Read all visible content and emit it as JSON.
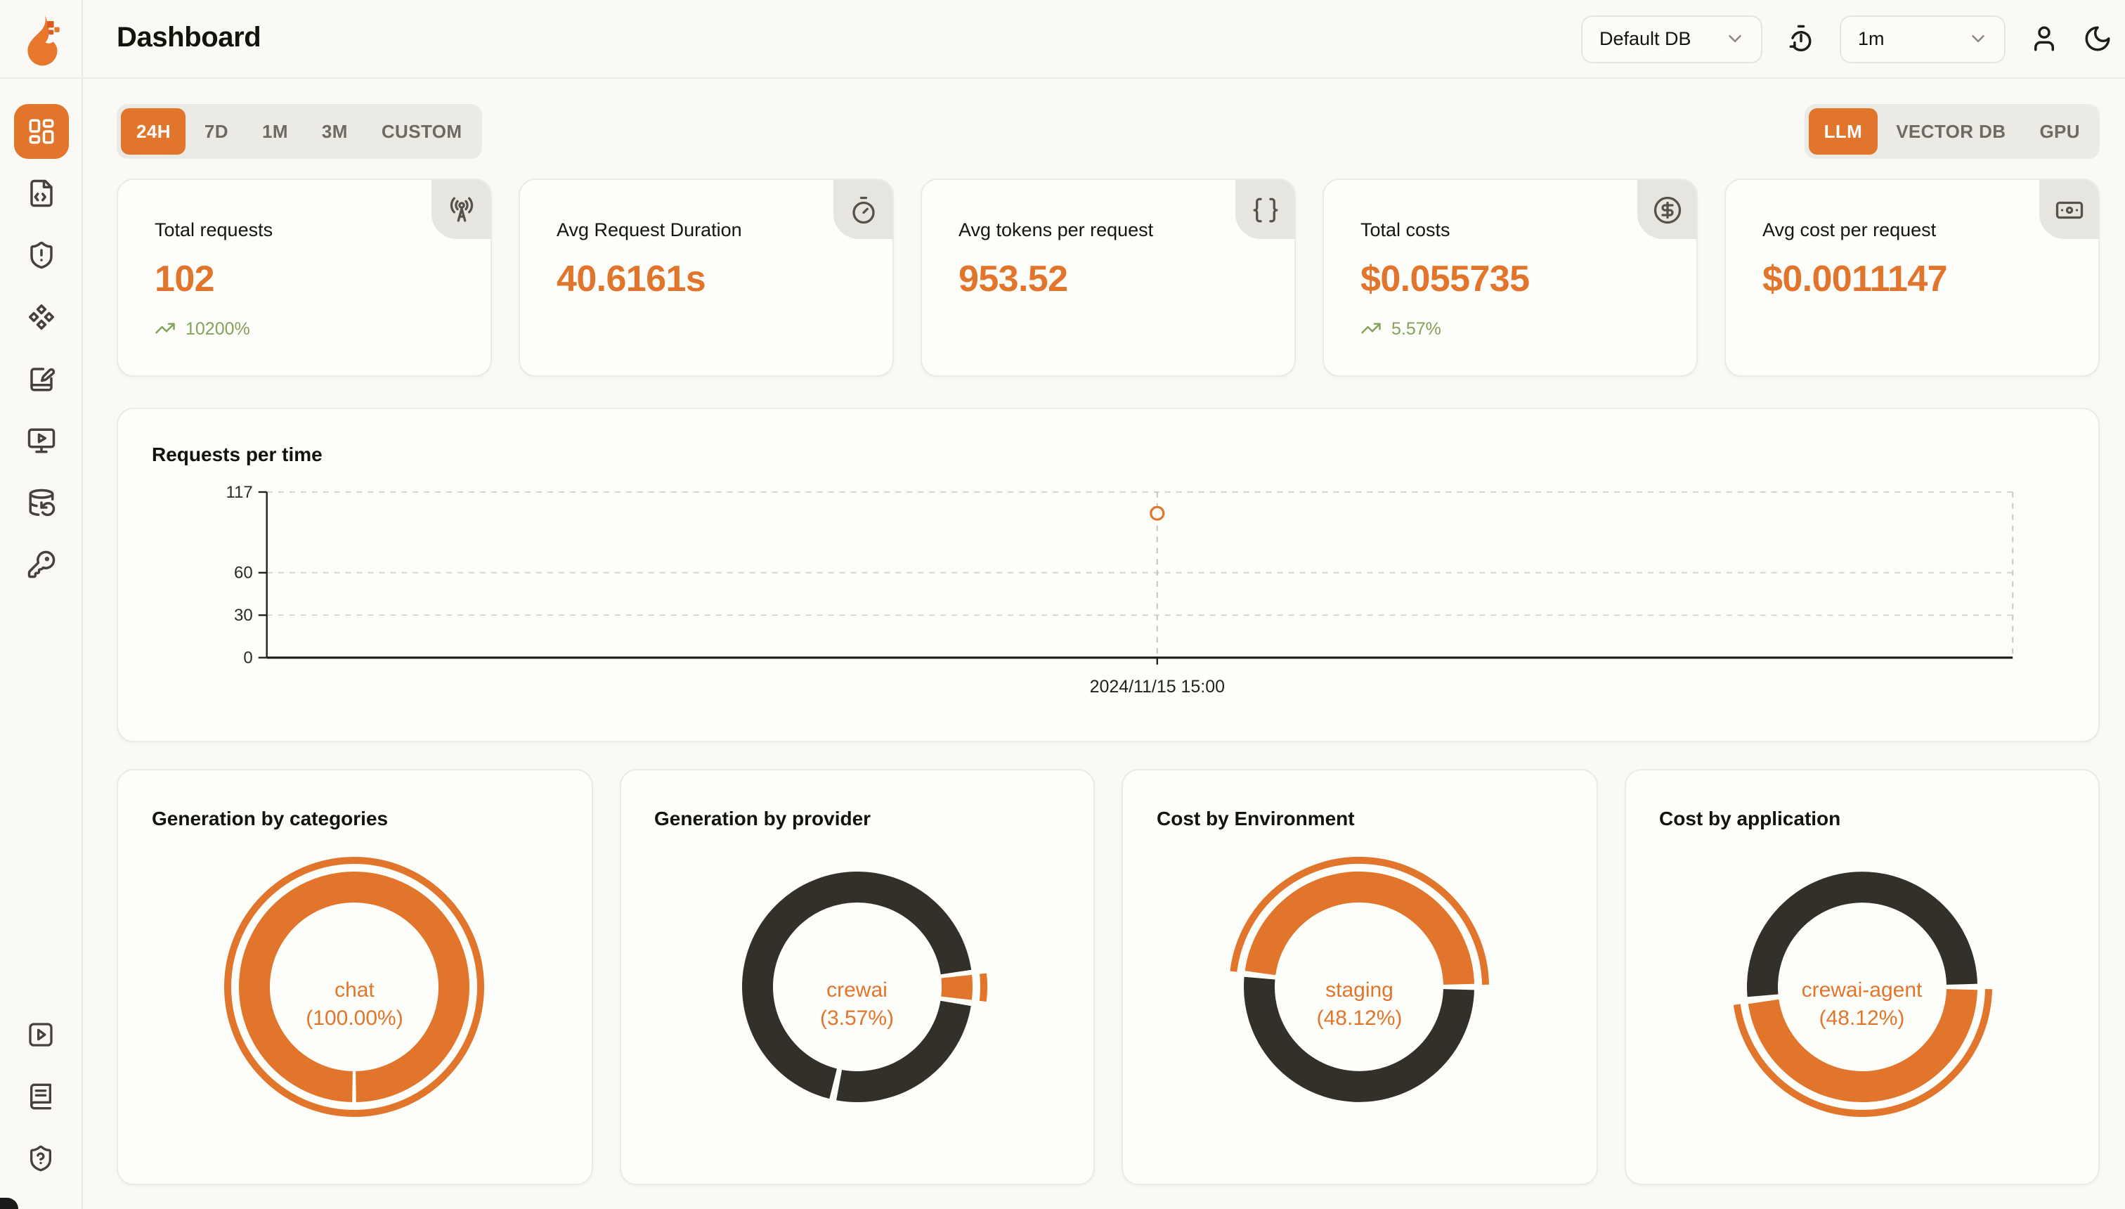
{
  "colors": {
    "orange": "#e1752c",
    "dark": "#33302a",
    "green": "#84a25c",
    "grid": "#d6d4cf",
    "axis": "#23211c"
  },
  "header": {
    "title": "Dashboard",
    "database_select": {
      "value": "Default DB"
    },
    "refresh_interval_select": {
      "value": "1m"
    }
  },
  "toolbar": {
    "time_ranges": [
      {
        "label": "24H",
        "active": true
      },
      {
        "label": "7D",
        "active": false
      },
      {
        "label": "1M",
        "active": false
      },
      {
        "label": "3M",
        "active": false
      },
      {
        "label": "CUSTOM",
        "active": false
      }
    ],
    "sources": [
      {
        "label": "LLM",
        "active": true
      },
      {
        "label": "VECTOR DB",
        "active": false
      },
      {
        "label": "GPU",
        "active": false
      }
    ]
  },
  "stats": {
    "cards": [
      {
        "title": "Total requests",
        "value": "102",
        "trend": "10200%",
        "icon": "radio-tower-icon"
      },
      {
        "title": "Avg Request Duration",
        "value": "40.6161s",
        "icon": "timer-icon"
      },
      {
        "title": "Avg tokens per request",
        "value": "953.52",
        "icon": "braces-icon"
      },
      {
        "title": "Total costs",
        "value": "$0.055735",
        "trend": "5.57%",
        "icon": "circle-dollar-icon"
      },
      {
        "title": "Avg cost per request",
        "value": "$0.0011147",
        "icon": "banknote-icon"
      }
    ]
  },
  "chart_data": [
    {
      "type": "line",
      "title": "Requests per time",
      "x": [
        "2024/11/15 15:00"
      ],
      "series": [
        {
          "name": "Requests",
          "values": [
            102
          ]
        }
      ],
      "ylim": [
        0,
        117
      ],
      "yticks": [
        0,
        30,
        60,
        117
      ],
      "grid": "dashed-horizontal",
      "legend": false,
      "point": {
        "x_label": "2024/11/15 15:00",
        "value": 102,
        "x_fraction": 0.51,
        "style": "hollow-circle",
        "color": "#e1752c"
      }
    },
    {
      "type": "pie",
      "variant": "donut",
      "title": "Generation by categories",
      "labels": [
        "chat"
      ],
      "values": [
        100.0
      ],
      "unit": "%",
      "center_label": [
        "chat",
        "(100.00%)"
      ],
      "segments": [
        {
          "start": 181,
          "end": 539,
          "color": "orange"
        }
      ],
      "accent_arc": {
        "start": 0,
        "end": 360
      }
    },
    {
      "type": "pie",
      "variant": "donut",
      "title": "Generation by provider",
      "labels": [
        "crewai",
        "",
        ""
      ],
      "values": [
        3.57,
        26.5,
        69.93
      ],
      "unit": "%",
      "center_label": [
        "crewai",
        "(3.57%)"
      ],
      "segments": [
        {
          "start": 84,
          "end": 96.5,
          "color": "orange"
        },
        {
          "start": 99.5,
          "end": 190.5,
          "color": "dark"
        },
        {
          "start": 194,
          "end": 441.5,
          "color": "dark"
        }
      ],
      "accent_arc": {
        "start": 84,
        "end": 96.5
      }
    },
    {
      "type": "pie",
      "variant": "donut",
      "title": "Cost by Environment",
      "labels": [
        "staging",
        ""
      ],
      "values": [
        48.12,
        51.88
      ],
      "unit": "%",
      "center_label": [
        "staging",
        "(48.12%)"
      ],
      "segments": [
        {
          "start": 278,
          "end": 448.5,
          "color": "orange"
        },
        {
          "start": 91.5,
          "end": 275,
          "color": "dark"
        }
      ],
      "accent_arc": {
        "start": 277,
        "end": 449
      }
    },
    {
      "type": "pie",
      "variant": "donut",
      "title": "Cost by application",
      "labels": [
        "crewai-agent",
        ""
      ],
      "values": [
        48.12,
        51.88
      ],
      "unit": "%",
      "center_label": [
        "crewai-agent",
        "(48.12%)"
      ],
      "segments": [
        {
          "start": 91.5,
          "end": 261.5,
          "color": "orange"
        },
        {
          "start": 265,
          "end": 448.5,
          "color": "dark"
        }
      ],
      "accent_arc": {
        "start": 91,
        "end": 262
      }
    }
  ]
}
